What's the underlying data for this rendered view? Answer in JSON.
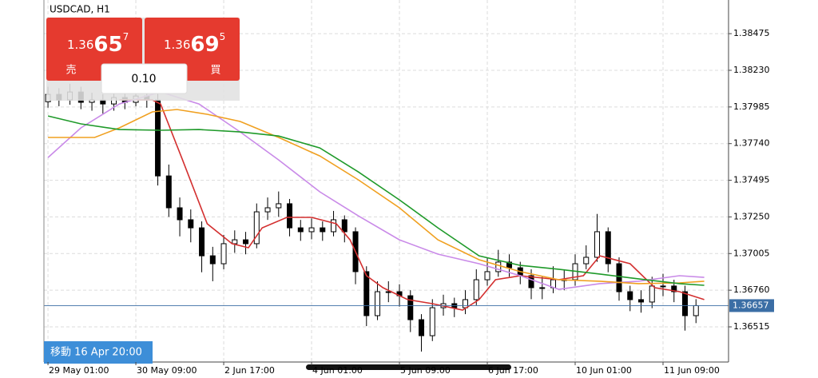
{
  "chart_data": {
    "type": "candlestick",
    "title": "USDCAD, H1",
    "x": [
      0,
      4,
      8,
      12,
      16,
      20,
      24,
      28,
      32,
      36,
      40,
      44,
      48,
      52,
      56,
      60,
      64,
      68,
      72,
      76,
      80,
      84,
      88,
      92,
      96,
      100,
      104,
      108,
      112,
      116,
      120,
      124,
      128,
      132,
      136,
      140,
      144,
      148,
      152,
      156,
      160,
      164,
      168,
      172,
      176,
      180,
      184,
      188,
      192,
      196,
      200,
      204,
      208,
      212,
      216,
      220,
      224,
      228,
      232,
      236
    ],
    "open": [
      1.3802,
      1.38069,
      1.38032,
      1.38085,
      1.38016,
      1.38032,
      1.38005,
      1.38048,
      1.38016,
      1.38058,
      1.38032,
      1.37524,
      1.37311,
      1.37231,
      1.37177,
      1.3699,
      1.36937,
      1.37071,
      1.37097,
      1.37071,
      1.37284,
      1.37311,
      1.37338,
      1.37177,
      1.37151,
      1.37177,
      1.37151,
      1.37231,
      1.37151,
      1.36884,
      1.3659,
      1.3675,
      1.3675,
      1.36723,
      1.36563,
      1.36456,
      1.36643,
      1.3667,
      1.36643,
      1.36697,
      1.3683,
      1.36884,
      1.36948,
      1.3691,
      1.36857,
      1.36777,
      1.36777,
      1.3683,
      1.3683,
      1.36937,
      1.3698,
      1.37151,
      1.36937,
      1.3675,
      1.36697,
      1.36681,
      1.36788,
      1.36788,
      1.3675,
      1.3659
    ],
    "high": [
      1.3812,
      1.3811,
      1.3814,
      1.3812,
      1.3808,
      1.3807,
      1.381,
      1.3809,
      1.3812,
      1.3811,
      1.3808,
      1.376,
      1.3738,
      1.373,
      1.3722,
      1.3705,
      1.3713,
      1.3716,
      1.3715,
      1.3734,
      1.3738,
      1.3742,
      1.3737,
      1.3723,
      1.3724,
      1.3722,
      1.3729,
      1.3726,
      1.3718,
      1.3692,
      1.3682,
      1.3682,
      1.368,
      1.3676,
      1.366,
      1.367,
      1.3673,
      1.3671,
      1.3676,
      1.369,
      1.3698,
      1.3703,
      1.37,
      1.3695,
      1.369,
      1.3685,
      1.3692,
      1.369,
      1.37,
      1.3706,
      1.3727,
      1.3718,
      1.3698,
      1.3679,
      1.3676,
      1.3685,
      1.3687,
      1.3683,
      1.3679,
      1.367
    ],
    "low": [
      1.3798,
      1.3799,
      1.38,
      1.3797,
      1.3796,
      1.3794,
      1.3796,
      1.3797,
      1.3799,
      1.3798,
      1.3746,
      1.3725,
      1.3712,
      1.3708,
      1.3688,
      1.3682,
      1.369,
      1.3701,
      1.37,
      1.3704,
      1.3723,
      1.3725,
      1.3712,
      1.3709,
      1.371,
      1.3709,
      1.3712,
      1.3708,
      1.368,
      1.3652,
      1.3656,
      1.3668,
      1.3665,
      1.3648,
      1.3635,
      1.3642,
      1.3659,
      1.3658,
      1.366,
      1.3666,
      1.3679,
      1.3685,
      1.3685,
      1.368,
      1.367,
      1.367,
      1.3674,
      1.3676,
      1.3679,
      1.369,
      1.3695,
      1.3688,
      1.3669,
      1.3662,
      1.3661,
      1.3664,
      1.3672,
      1.3668,
      1.3649,
      1.3654
    ],
    "close": [
      1.38069,
      1.38032,
      1.38085,
      1.38016,
      1.38032,
      1.38005,
      1.38048,
      1.38016,
      1.38058,
      1.38032,
      1.37524,
      1.37311,
      1.37231,
      1.37177,
      1.3699,
      1.36937,
      1.37071,
      1.37097,
      1.37071,
      1.37284,
      1.37311,
      1.37338,
      1.37177,
      1.37151,
      1.37177,
      1.37151,
      1.37231,
      1.37151,
      1.36884,
      1.3659,
      1.3675,
      1.3675,
      1.36723,
      1.36563,
      1.36456,
      1.36643,
      1.3667,
      1.36643,
      1.36697,
      1.3683,
      1.36884,
      1.36948,
      1.3691,
      1.36857,
      1.36777,
      1.36777,
      1.3683,
      1.3683,
      1.36937,
      1.3698,
      1.37151,
      1.36937,
      1.3675,
      1.36697,
      1.36681,
      1.36788,
      1.36788,
      1.3675,
      1.3659,
      1.36657
    ],
    "up_color": "#ffffff",
    "down_color": "#000000",
    "overlays": [
      {
        "type": "line",
        "color": "#d32f2f",
        "x": [
          26,
          38,
          41,
          49,
          58,
          67,
          73,
          78,
          87,
          96,
          105,
          110,
          116,
          122,
          131,
          140,
          151,
          157,
          163,
          172,
          186,
          195,
          201,
          212,
          221,
          230,
          239
        ],
        "values": [
          1.38032,
          1.38032,
          1.38005,
          1.37631,
          1.37204,
          1.37071,
          1.37044,
          1.37177,
          1.37247,
          1.37247,
          1.37204,
          1.37097,
          1.36857,
          1.36777,
          1.36697,
          1.3667,
          1.36627,
          1.36697,
          1.3683,
          1.36857,
          1.3683,
          1.36857,
          1.3699,
          1.36937,
          1.36777,
          1.3675,
          1.36697
        ]
      },
      {
        "type": "line",
        "color": "#c98ae8",
        "x": [
          0,
          12,
          26,
          41,
          55,
          70,
          84,
          99,
          113,
          128,
          142,
          157,
          172,
          186,
          201,
          215,
          230,
          239
        ],
        "values": [
          1.37647,
          1.37845,
          1.38005,
          1.38085,
          1.38005,
          1.37818,
          1.37631,
          1.37418,
          1.37257,
          1.37097,
          1.37001,
          1.36937,
          1.36857,
          1.36766,
          1.36804,
          1.3682,
          1.36857,
          1.36846
        ]
      },
      {
        "type": "line",
        "color": "#f0a020",
        "x": [
          0,
          17,
          26,
          38,
          47,
          58,
          70,
          84,
          99,
          113,
          128,
          142,
          157,
          172,
          186,
          201,
          215,
          230,
          239
        ],
        "values": [
          1.37781,
          1.37781,
          1.37845,
          1.37952,
          1.37968,
          1.37936,
          1.37888,
          1.37781,
          1.37658,
          1.37498,
          1.37311,
          1.37097,
          1.36964,
          1.36884,
          1.3683,
          1.3682,
          1.36804,
          1.36809,
          1.3682
        ]
      },
      {
        "type": "line",
        "color": "#1f9a2a",
        "x": [
          0,
          12,
          26,
          41,
          55,
          70,
          84,
          99,
          113,
          128,
          142,
          157,
          172,
          186,
          201,
          215,
          230,
          239
        ],
        "values": [
          1.37925,
          1.37872,
          1.37834,
          1.37829,
          1.37834,
          1.37818,
          1.37791,
          1.37711,
          1.37551,
          1.37364,
          1.37177,
          1.3699,
          1.36926,
          1.369,
          1.36868,
          1.36836,
          1.36804,
          1.36793
        ]
      }
    ],
    "ylim": [
      1.3628,
      1.387
    ],
    "yticks": [
      1.38475,
      {
        "value": 1.3823,
        "label": "1.38230"
      },
      1.37985,
      {
        "value": 1.3774,
        "label": "1.37740"
      },
      1.37495,
      {
        "value": 1.3725,
        "label": "1.37250"
      },
      1.37005,
      {
        "value": 1.3676,
        "label": "1.36760"
      },
      1.36515
    ],
    "xlim": [
      -0.6,
      240
    ],
    "xticks": [
      {
        "value": 0,
        "label": "29 May 01:00"
      },
      {
        "value": 32,
        "label": "30 May 09:00"
      },
      {
        "value": 64,
        "label": "2 Jun 17:00"
      },
      {
        "value": 96,
        "label": "4 Jun 01:00"
      },
      {
        "value": 128,
        "label": "5 Jun 09:00"
      },
      {
        "value": 160,
        "label": "6 Jun 17:00"
      },
      {
        "value": 192,
        "label": "10 Jun 01:00"
      },
      {
        "value": 224,
        "label": "11 Jun 09:00"
      }
    ],
    "grid": true,
    "current_price": 1.36657,
    "current_price_color": "#3b6ea5"
  },
  "trade_panel": {
    "sell": {
      "price_prefix": "1.36",
      "price_big": "65",
      "price_sup": "7",
      "label": "売"
    },
    "buy": {
      "price_prefix": "1.36",
      "price_big": "69",
      "price_sup": "5",
      "label": "買"
    },
    "lot": "0.10"
  },
  "navigation": {
    "button": "移動 16 Apr 20:00"
  }
}
